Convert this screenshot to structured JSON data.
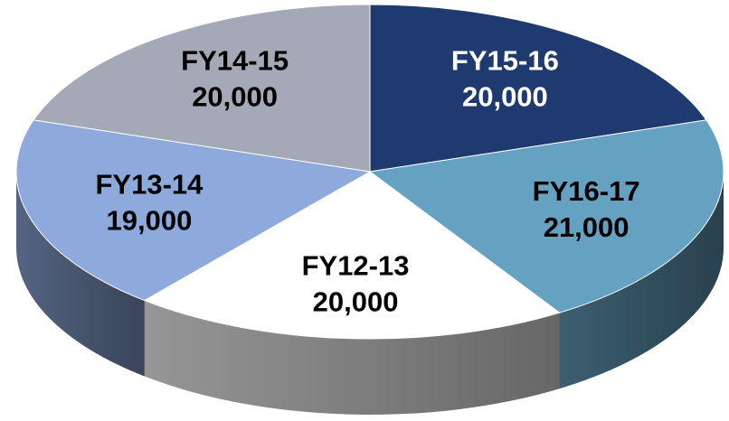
{
  "chart_data": {
    "type": "pie",
    "categories": [
      "FY15-16",
      "FY16-17",
      "FY12-13",
      "FY13-14",
      "FY14-15"
    ],
    "values": [
      20000,
      21000,
      20000,
      19000,
      20000
    ],
    "value_labels": [
      "20,000",
      "21,000",
      "20,000",
      "19,000",
      "20,000"
    ],
    "colors": [
      "#1f3a6e",
      "#65a1c0",
      "#ffffff",
      "#8ea9dc",
      "#a5a8b7"
    ],
    "label_colors": [
      "#ffffff",
      "#000000",
      "#000000",
      "#000000",
      "#000000"
    ]
  }
}
